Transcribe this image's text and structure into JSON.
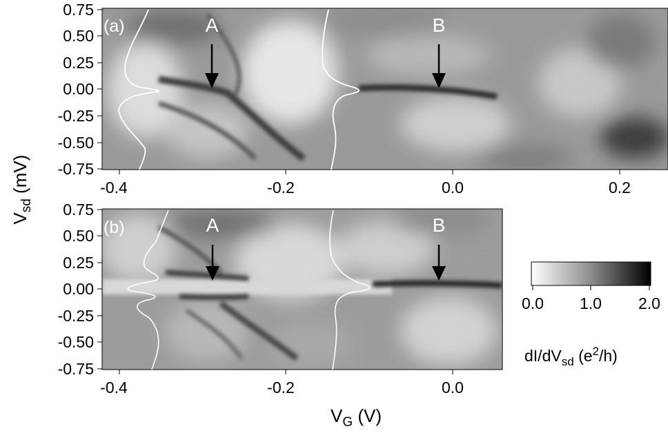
{
  "chart_data": [
    {
      "type": "heatmap",
      "panel_label": "(a)",
      "xlim": [
        -0.42,
        0.26
      ],
      "ylim": [
        -0.75,
        0.75
      ],
      "x_ticks": [
        "-0.4",
        "-0.2",
        "0.0",
        "0.2"
      ],
      "y_ticks": [
        "0.75",
        "0.50",
        "0.25",
        "0.00",
        "-0.25",
        "-0.50",
        "-0.75"
      ],
      "markers": [
        {
          "label": "A",
          "x": -0.285,
          "y": 0.0
        },
        {
          "label": "B",
          "x": -0.015,
          "y": 0.0
        }
      ],
      "line_cuts": [
        {
          "x_base": -0.37,
          "peak_x": -0.34,
          "peak_y": 0.0
        },
        {
          "x_base": -0.14,
          "peak_x": -0.105,
          "peak_y": 0.0
        }
      ]
    },
    {
      "type": "heatmap",
      "panel_label": "(b)",
      "xlim": [
        -0.42,
        0.05
      ],
      "ylim": [
        -0.75,
        0.75
      ],
      "x_ticks": [
        "-0.4",
        "-0.2",
        "0.0"
      ],
      "y_ticks": [
        "0.75",
        "0.50",
        "0.25",
        "0.00",
        "-0.25",
        "-0.50",
        "-0.75"
      ],
      "markers": [
        {
          "label": "A",
          "x": -0.28,
          "y": 0.08
        },
        {
          "label": "B",
          "x": -0.015,
          "y": 0.08
        }
      ],
      "line_cuts": [
        {
          "x_base": -0.355,
          "peak_x": -0.33,
          "peak_y": 0.08
        },
        {
          "x_base": -0.135,
          "peak_x": -0.09,
          "peak_y": 0.0
        }
      ]
    }
  ],
  "ylabel_main": "V",
  "ylabel_sub": "sd",
  "ylabel_unit": " (mV)",
  "xlabel_main": "V",
  "xlabel_sub": "G",
  "xlabel_unit": " (V)",
  "colorbar": {
    "ticks": [
      "0.0",
      "1.0",
      "2.0"
    ],
    "range": [
      0.0,
      2.0
    ],
    "title_pre": "dI/dV",
    "title_sub": "sd",
    "title_unit_pre": " (e",
    "title_sup": "2",
    "title_unit_post": "/h)",
    "color_low": "#ffffff",
    "color_high": "#000000"
  }
}
